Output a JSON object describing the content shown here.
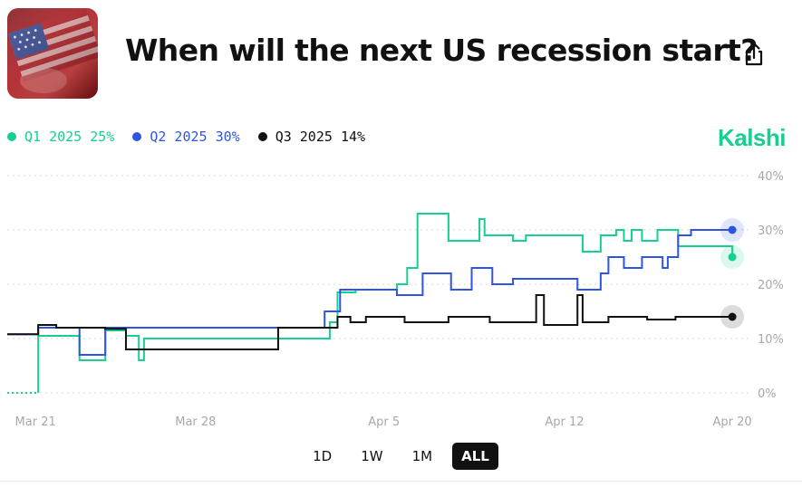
{
  "title": "When will the next US recession start?",
  "brand": "Kalshi",
  "colors": {
    "q1": "#17cf8f",
    "q2": "#2f55e0",
    "q3": "#111111",
    "brand": "#17cf8f",
    "grid": "#d6d6d6"
  },
  "icons": {
    "share": "share-icon",
    "thumbnail": "us-flag-image"
  },
  "legend": [
    {
      "label": "Q1 2025",
      "value": "25%",
      "color": "#17cf8f"
    },
    {
      "label": "Q2 2025",
      "value": "30%",
      "color": "#2f55e0"
    },
    {
      "label": "Q3 2025",
      "value": "14%",
      "color": "#111111"
    }
  ],
  "ranges": [
    "1D",
    "1W",
    "1M",
    "ALL"
  ],
  "selected_range": "ALL",
  "chart_data": {
    "type": "line",
    "x_ticks": [
      "Mar 21",
      "Mar 28",
      "Apr 5",
      "Apr 12",
      "Apr 20"
    ],
    "x_tick_days": [
      0,
      7,
      14.3,
      21.3,
      27.8
    ],
    "x_range": [
      -0.3,
      28.5
    ],
    "y_ticks": [
      "0%",
      "10%",
      "20%",
      "30%",
      "40%"
    ],
    "y_tick_values": [
      0,
      10,
      20,
      30,
      40
    ],
    "ylim": [
      0,
      40
    ],
    "grid": true,
    "legend_position": "top-left",
    "series": [
      {
        "name": "Q1 2025",
        "color": "#17cf8f",
        "points": [
          [
            -0.3,
            0
          ],
          [
            0.9,
            0
          ],
          [
            0.9,
            10.5
          ],
          [
            2.5,
            10.5
          ],
          [
            2.5,
            6
          ],
          [
            3.5,
            6
          ],
          [
            3.5,
            11.5
          ],
          [
            4.3,
            11.5
          ],
          [
            4.3,
            10.5
          ],
          [
            4.8,
            10.5
          ],
          [
            4.8,
            6
          ],
          [
            5.0,
            6
          ],
          [
            5.0,
            10
          ],
          [
            12.2,
            10
          ],
          [
            12.2,
            13
          ],
          [
            12.5,
            13
          ],
          [
            12.5,
            18.5
          ],
          [
            13.2,
            18.5
          ],
          [
            13.2,
            19
          ],
          [
            14.8,
            19
          ],
          [
            14.8,
            20
          ],
          [
            15.2,
            20
          ],
          [
            15.2,
            23
          ],
          [
            15.6,
            23
          ],
          [
            15.6,
            33
          ],
          [
            16.8,
            33
          ],
          [
            16.8,
            28
          ],
          [
            18.0,
            28
          ],
          [
            18.0,
            32
          ],
          [
            18.2,
            32
          ],
          [
            18.2,
            29
          ],
          [
            19.3,
            29
          ],
          [
            19.3,
            28
          ],
          [
            19.8,
            28
          ],
          [
            19.8,
            29
          ],
          [
            22.0,
            29
          ],
          [
            22.0,
            26
          ],
          [
            22.7,
            26
          ],
          [
            22.7,
            29
          ],
          [
            23.3,
            29
          ],
          [
            23.3,
            30
          ],
          [
            23.6,
            30
          ],
          [
            23.6,
            28
          ],
          [
            23.9,
            28
          ],
          [
            23.9,
            30
          ],
          [
            24.3,
            30
          ],
          [
            24.3,
            28
          ],
          [
            24.9,
            28
          ],
          [
            24.9,
            30
          ],
          [
            25.7,
            30
          ],
          [
            25.7,
            27
          ],
          [
            27.8,
            27
          ],
          [
            27.8,
            25
          ]
        ]
      },
      {
        "name": "Q2 2025",
        "color": "#2f55e0",
        "points": [
          [
            -0.3,
            10.8
          ],
          [
            0.9,
            10.8
          ],
          [
            0.9,
            12
          ],
          [
            2.5,
            12
          ],
          [
            2.5,
            7
          ],
          [
            3.5,
            7
          ],
          [
            3.5,
            12
          ],
          [
            12.0,
            12
          ],
          [
            12.0,
            15
          ],
          [
            12.6,
            15
          ],
          [
            12.6,
            19
          ],
          [
            14.8,
            19
          ],
          [
            14.8,
            18
          ],
          [
            15.8,
            18
          ],
          [
            15.8,
            22
          ],
          [
            16.9,
            22
          ],
          [
            16.9,
            19
          ],
          [
            17.7,
            19
          ],
          [
            17.7,
            23
          ],
          [
            18.5,
            23
          ],
          [
            18.5,
            20
          ],
          [
            19.3,
            20
          ],
          [
            19.3,
            21
          ],
          [
            21.8,
            21
          ],
          [
            21.8,
            19
          ],
          [
            22.7,
            19
          ],
          [
            22.7,
            22
          ],
          [
            23.0,
            22
          ],
          [
            23.0,
            25
          ],
          [
            23.6,
            25
          ],
          [
            23.6,
            23
          ],
          [
            24.3,
            23
          ],
          [
            24.3,
            25
          ],
          [
            25.1,
            25
          ],
          [
            25.1,
            23
          ],
          [
            25.3,
            23
          ],
          [
            25.3,
            25
          ],
          [
            25.7,
            25
          ],
          [
            25.7,
            29
          ],
          [
            26.2,
            29
          ],
          [
            26.2,
            30
          ],
          [
            27.8,
            30
          ]
        ]
      },
      {
        "name": "Q3 2025",
        "color": "#111111",
        "points": [
          [
            -0.3,
            10.8
          ],
          [
            0.9,
            10.8
          ],
          [
            0.9,
            12.5
          ],
          [
            1.6,
            12.5
          ],
          [
            1.6,
            12
          ],
          [
            3.5,
            12
          ],
          [
            3.5,
            11.8
          ],
          [
            4.3,
            11.8
          ],
          [
            4.3,
            8
          ],
          [
            10.2,
            8
          ],
          [
            10.2,
            12
          ],
          [
            12.5,
            12
          ],
          [
            12.5,
            14
          ],
          [
            13.0,
            14
          ],
          [
            13.0,
            13
          ],
          [
            13.6,
            13
          ],
          [
            13.6,
            14
          ],
          [
            15.1,
            14
          ],
          [
            15.1,
            13
          ],
          [
            16.8,
            13
          ],
          [
            16.8,
            14
          ],
          [
            18.4,
            14
          ],
          [
            18.4,
            13
          ],
          [
            20.2,
            13
          ],
          [
            20.2,
            18
          ],
          [
            20.5,
            18
          ],
          [
            20.5,
            12.5
          ],
          [
            21.8,
            12.5
          ],
          [
            21.8,
            18
          ],
          [
            22.0,
            18
          ],
          [
            22.0,
            13
          ],
          [
            23.0,
            13
          ],
          [
            23.0,
            14
          ],
          [
            24.5,
            14
          ],
          [
            24.5,
            13.5
          ],
          [
            25.6,
            13.5
          ],
          [
            25.6,
            14
          ],
          [
            27.8,
            14
          ]
        ]
      }
    ]
  }
}
